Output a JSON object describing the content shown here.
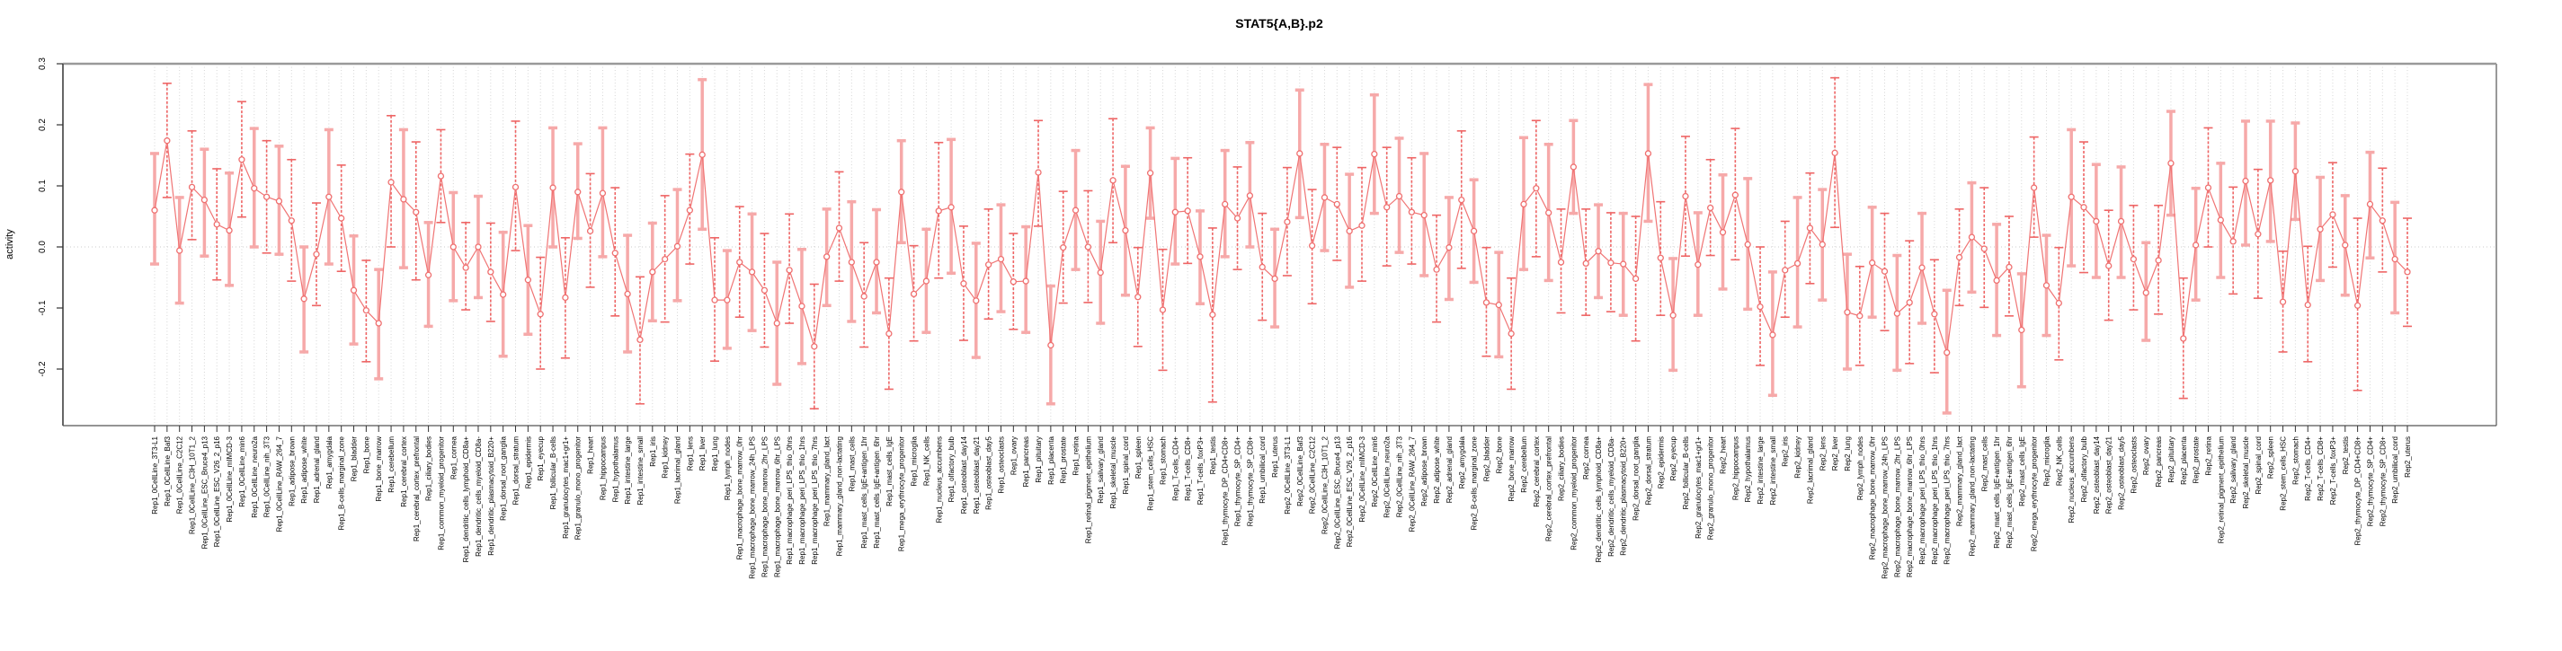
{
  "header": {
    "title": "STAT5{A,B}.p2"
  },
  "chart_data": {
    "type": "line",
    "title": "STAT5{A,B}.p2",
    "xlabel": "",
    "ylabel": "activity",
    "ylim": [
      -0.293,
      0.3
    ],
    "yticks": [
      -0.2,
      -0.1,
      0.0,
      0.1,
      0.2,
      0.3
    ],
    "grid": "vertical dotted line at every category; horizontal dotted line at y=0",
    "legend": "none",
    "marker": "open-circle",
    "series_color": "#f07474",
    "marker_color": "#ef7070",
    "grid_color": "#d6d6d6",
    "zero_line_color": "#cccccc",
    "box_color": "#999999",
    "axis_color": "#555555",
    "tick_color": "#333333",
    "text_color": "#000000",
    "errorbar_styles": [
      {
        "color": "#f6a9a9",
        "width": 3.5,
        "dash": ""
      },
      {
        "color": "#ee6565",
        "width": 1.6,
        "dash": "3,2"
      }
    ],
    "categories": [
      "Rep1_0CellLine_3T3-L1",
      "Rep1_0CellLine_Baf3",
      "Rep1_0CellLine_C2C12",
      "Rep1_0CellLine_C3H_10T1_2",
      "Rep1_0CellLine_ESC_Bruce4_p13",
      "Rep1_0CellLine_ESC_V26_2_p16",
      "Rep1_0CellLine_mIMCD-3",
      "Rep1_0CellLine_min6",
      "Rep1_0CellLine_neuro2a",
      "Rep1_0CellLine_nih_3T3",
      "Rep1_0CellLine_RAW_264_7",
      "Rep1_adipose_brown",
      "Rep1_adipose_white",
      "Rep1_adrenal_gland",
      "Rep1_amygdala",
      "Rep1_B-cells_marginal_zone",
      "Rep1_bladder",
      "Rep1_bone",
      "Rep1_bone_marrow",
      "Rep1_cerebellum",
      "Rep1_cerebral_cortex",
      "Rep1_cerebral_cortex_prefrontal",
      "Rep1_ciliary_bodies",
      "Rep1_common_myeloid_progenitor",
      "Rep1_cornea",
      "Rep1_dendritic_cells_lymphoid_CD8a+",
      "Rep1_dendritic_cells_myeloid_CD8a-",
      "Rep1_dendritic_plasmacytoid_B220+",
      "Rep1_dorsal_root_ganglia",
      "Rep1_dorsal_stratum",
      "Rep1_epidermis",
      "Rep1_eyecup",
      "Rep1_follicular_B-cells",
      "Rep1_granulocytes_mac1+gr1+",
      "Rep1_granulo_mono_progenitor",
      "Rep1_heart",
      "Rep1_hippocampus",
      "Rep1_hypothalamus",
      "Rep1_intestine_large",
      "Rep1_intestine_small",
      "Rep1_iris",
      "Rep1_kidney",
      "Rep1_lacrimal_gland",
      "Rep1_lens",
      "Rep1_liver",
      "Rep1_lung",
      "Rep1_lymph_nodes",
      "Rep1_macrophage_bone_marrow_0hr",
      "Rep1_macrophage_bone_marrow_24h_LPS",
      "Rep1_macrophage_bone_marrow_2hr_LPS",
      "Rep1_macrophage_bone_marrow_6hr_LPS",
      "Rep1_macrophage_peri_LPS_thio_0hrs",
      "Rep1_macrophage_peri_LPS_thio_1hrs",
      "Rep1_macrophage_peri_LPS_thio_7hrs",
      "Rep1_mammary_gland_lact",
      "Rep1_mammary_gland_non-lactating",
      "Rep1_mast_cells",
      "Rep1_mast_cells_IgE+antigen_1hr",
      "Rep1_mast_cells_IgE+antigen_6hr",
      "Rep1_mast_cells_IgE",
      "Rep1_mega_erythrocyte_progenitor",
      "Rep1_microglia",
      "Rep1_NK_cells",
      "Rep1_nucleus_accumbens",
      "Rep1_olfactory_bulb",
      "Rep1_osteoblast_day14",
      "Rep1_osteoblast_day21",
      "Rep1_osteoblast_day5",
      "Rep1_osteoclasts",
      "Rep1_ovary",
      "Rep1_pancreas",
      "Rep1_pituitary",
      "Rep1_placenta",
      "Rep1_prostate",
      "Rep1_retina",
      "Rep1_retinal_pigment_epithelium",
      "Rep1_salivary_gland",
      "Rep1_skeletal_muscle",
      "Rep1_spinal_cord",
      "Rep1_spleen",
      "Rep1_stem_cells_HSC",
      "Rep1_stomach",
      "Rep1_T-cells_CD4+",
      "Rep1_T-cells_CD8+",
      "Rep1_T-cells_foxP3+",
      "Rep1_testis",
      "Rep1_thymocyte_DP_CD4+CD8+",
      "Rep1_thymocyte_SP_CD4+",
      "Rep1_thymocyte_SP_CD8+",
      "Rep1_umbilical_cord",
      "Rep1_uterus",
      "Rep2_0CellLine_3T3-L1",
      "Rep2_0CellLine_Baf3",
      "Rep2_0CellLine_C2C12",
      "Rep2_0CellLine_C3H_10T1_2",
      "Rep2_0CellLine_ESC_Bruce4_p13",
      "Rep2_0CellLine_ESC_V26_2_p16",
      "Rep2_0CellLine_mIMCD-3",
      "Rep2_0CellLine_min6",
      "Rep2_0CellLine_neuro2a",
      "Rep2_0CellLine_nih_3T3",
      "Rep2_0CellLine_RAW_264_7",
      "Rep2_adipose_brown",
      "Rep2_adipose_white",
      "Rep2_adrenal_gland",
      "Rep2_amygdala",
      "Rep2_B-cells_marginal_zone",
      "Rep2_bladder",
      "Rep2_bone",
      "Rep2_bone_marrow",
      "Rep2_cerebellum",
      "Rep2_cerebral_cortex",
      "Rep2_cerebral_cortex_prefrontal",
      "Rep2_ciliary_bodies",
      "Rep2_common_myeloid_progenitor",
      "Rep2_cornea",
      "Rep2_dendritic_cells_lymphoid_CD8a+",
      "Rep2_dendritic_cells_myeloid_CD8a-",
      "Rep2_dendritic_plasmacytoid_B220+",
      "Rep2_dorsal_root_ganglia",
      "Rep2_dorsal_stratum",
      "Rep2_epidermis",
      "Rep2_eyecup",
      "Rep2_follicular_B-cells",
      "Rep2_granulocytes_mac1+gr1+",
      "Rep2_granulo_mono_progenitor",
      "Rep2_heart",
      "Rep2_hippocampus",
      "Rep2_hypothalamus",
      "Rep2_intestine_large",
      "Rep2_intestine_small",
      "Rep2_iris",
      "Rep2_kidney",
      "Rep2_lacrimal_gland",
      "Rep2_lens",
      "Rep2_liver",
      "Rep2_lung",
      "Rep2_lymph_nodes",
      "Rep2_macrophage_bone_marrow_0hr",
      "Rep2_macrophage_bone_marrow_24h_LPS",
      "Rep2_macrophage_bone_marrow_2hr_LPS",
      "Rep2_macrophage_bone_marrow_6hr_LPS",
      "Rep2_macrophage_peri_LPS_thio_0hrs",
      "Rep2_macrophage_peri_LPS_thio_1hrs",
      "Rep2_macrophage_peri_LPS_thio_7hrs",
      "Rep2_mammary_gland_lact",
      "Rep2_mammary_gland_non-lactating",
      "Rep2_mast_cells",
      "Rep2_mast_cells_IgE+antigen_1hr",
      "Rep2_mast_cells_IgE+antigen_6hr",
      "Rep2_mast_cells_IgE",
      "Rep2_mega_erythrocyte_progenitor",
      "Rep2_microglia",
      "Rep2_NK_cells",
      "Rep2_nucleus_accumbens",
      "Rep2_olfactory_bulb",
      "Rep2_osteoblast_day14",
      "Rep2_osteoblast_day21",
      "Rep2_osteoblast_day5",
      "Rep2_osteoclasts",
      "Rep2_ovary",
      "Rep2_pancreas",
      "Rep2_pituitary",
      "Rep2_placenta",
      "Rep2_prostate",
      "Rep2_retina",
      "Rep2_retinal_pigment_epithelium",
      "Rep2_salivary_gland",
      "Rep2_skeletal_muscle",
      "Rep2_spinal_cord",
      "Rep2_spleen",
      "Rep2_stem_cells_HSC",
      "Rep2_stomach",
      "Rep2_T-cells_CD4+",
      "Rep2_T-cells_CD8+",
      "Rep2_T-cells_foxP3+",
      "Rep2_testis",
      "Rep2_thymocyte_DP_CD4+CD8+",
      "Rep2_thymocyte_SP_CD4+",
      "Rep2_thymocyte_SP_CD8+",
      "Rep2_umbilical_cord",
      "Rep2_uterus"
    ],
    "values": [
      0.06,
      0.174,
      -0.006,
      0.098,
      0.077,
      0.037,
      0.027,
      0.143,
      0.096,
      0.082,
      0.075,
      0.043,
      -0.085,
      -0.012,
      0.082,
      0.047,
      -0.071,
      -0.104,
      -0.125,
      0.106,
      0.078,
      0.057,
      -0.046,
      0.116,
      0.0,
      -0.034,
      0.0,
      -0.041,
      -0.078,
      0.098,
      -0.054,
      -0.11,
      0.097,
      -0.083,
      0.09,
      0.026,
      0.088,
      -0.01,
      -0.077,
      -0.152,
      -0.041,
      -0.02,
      0.001,
      0.06,
      0.151,
      -0.087,
      -0.087,
      -0.025,
      -0.041,
      -0.071,
      -0.125,
      -0.038,
      -0.097,
      -0.163,
      -0.016,
      0.031,
      -0.025,
      -0.081,
      -0.025,
      -0.142,
      0.09,
      -0.077,
      -0.056,
      0.059,
      0.065,
      -0.06,
      -0.088,
      -0.029,
      -0.02,
      -0.057,
      -0.056,
      0.122,
      -0.161,
      -0.001,
      0.06,
      0.0,
      -0.042,
      0.109,
      0.027,
      -0.082,
      0.121,
      -0.103,
      0.057,
      0.059,
      -0.016,
      -0.111,
      0.07,
      0.047,
      0.084,
      -0.033,
      -0.052,
      0.041,
      0.153,
      0.002,
      0.081,
      0.07,
      0.026,
      0.035,
      0.152,
      0.065,
      0.083,
      0.057,
      0.052,
      -0.037,
      -0.001,
      0.077,
      0.026,
      -0.091,
      -0.095,
      -0.142,
      0.07,
      0.096,
      0.056,
      -0.025,
      0.131,
      -0.027,
      -0.007,
      -0.026,
      -0.028,
      -0.052,
      0.153,
      -0.018,
      -0.112,
      0.083,
      -0.029,
      0.064,
      0.024,
      0.085,
      0.004,
      -0.098,
      -0.144,
      -0.038,
      -0.027,
      0.031,
      0.004,
      0.154,
      -0.107,
      -0.113,
      -0.026,
      -0.04,
      -0.109,
      -0.091,
      -0.034,
      -0.11,
      -0.173,
      -0.017,
      0.016,
      -0.003,
      -0.055,
      -0.033,
      -0.136,
      0.097,
      -0.063,
      -0.092,
      0.082,
      0.065,
      0.042,
      -0.031,
      0.042,
      -0.02,
      -0.075,
      -0.022,
      0.137,
      -0.15,
      0.003,
      0.097,
      0.044,
      0.009,
      0.108,
      0.021,
      0.109,
      -0.09,
      0.124,
      -0.095,
      0.029,
      0.053,
      0.003,
      -0.096,
      0.07,
      0.043,
      -0.02,
      -0.041
    ],
    "err_lo": [
      -0.028,
      0.081,
      -0.092,
      0.012,
      -0.015,
      -0.054,
      -0.063,
      0.049,
      0.0,
      -0.01,
      -0.012,
      -0.056,
      -0.172,
      -0.096,
      -0.028,
      -0.04,
      -0.159,
      -0.188,
      -0.216,
      0.0,
      -0.034,
      -0.054,
      -0.13,
      0.04,
      -0.088,
      -0.103,
      -0.083,
      -0.122,
      -0.179,
      -0.006,
      -0.143,
      -0.2,
      0.0,
      -0.182,
      0.014,
      -0.066,
      -0.016,
      -0.113,
      -0.172,
      -0.257,
      -0.121,
      -0.123,
      -0.088,
      -0.028,
      0.029,
      -0.187,
      -0.166,
      -0.115,
      -0.137,
      -0.164,
      -0.225,
      -0.125,
      -0.191,
      -0.265,
      -0.096,
      -0.056,
      -0.122,
      -0.164,
      -0.108,
      -0.233,
      0.007,
      -0.154,
      -0.14,
      -0.051,
      -0.043,
      -0.153,
      -0.181,
      -0.118,
      -0.106,
      -0.135,
      -0.14,
      0.034,
      -0.257,
      -0.092,
      -0.037,
      -0.091,
      -0.125,
      0.007,
      -0.079,
      -0.163,
      0.047,
      -0.202,
      -0.028,
      -0.027,
      -0.093,
      -0.254,
      -0.016,
      -0.037,
      0.0,
      -0.12,
      -0.131,
      -0.047,
      0.048,
      -0.093,
      -0.006,
      -0.022,
      -0.066,
      -0.056,
      0.055,
      -0.031,
      -0.009,
      -0.028,
      -0.047,
      -0.123,
      -0.086,
      -0.035,
      -0.058,
      -0.179,
      -0.18,
      -0.233,
      -0.037,
      -0.016,
      -0.055,
      -0.108,
      0.055,
      -0.112,
      -0.083,
      -0.106,
      -0.112,
      -0.154,
      0.042,
      -0.112,
      -0.202,
      -0.015,
      -0.112,
      -0.014,
      -0.069,
      -0.021,
      -0.102,
      -0.194,
      -0.243,
      -0.115,
      -0.131,
      -0.06,
      -0.087,
      0.032,
      -0.2,
      -0.194,
      -0.115,
      -0.137,
      -0.202,
      -0.191,
      -0.125,
      -0.206,
      -0.272,
      -0.096,
      -0.074,
      -0.099,
      -0.145,
      -0.113,
      -0.229,
      0.016,
      -0.145,
      -0.185,
      -0.031,
      -0.042,
      -0.05,
      -0.12,
      -0.05,
      -0.103,
      -0.153,
      -0.11,
      0.052,
      -0.248,
      -0.087,
      0.0,
      -0.05,
      -0.077,
      0.003,
      -0.084,
      0.009,
      -0.172,
      0.045,
      -0.188,
      -0.055,
      -0.033,
      -0.079,
      -0.235,
      -0.018,
      -0.041,
      -0.108,
      -0.13
    ],
    "err_hi": [
      0.153,
      0.268,
      0.081,
      0.19,
      0.16,
      0.128,
      0.121,
      0.238,
      0.194,
      0.174,
      0.165,
      0.143,
      0.0,
      0.072,
      0.192,
      0.134,
      0.018,
      -0.022,
      -0.037,
      0.215,
      0.192,
      0.172,
      0.04,
      0.192,
      0.089,
      0.04,
      0.083,
      0.039,
      0.024,
      0.206,
      0.035,
      -0.017,
      0.195,
      0.015,
      0.169,
      0.12,
      0.195,
      0.097,
      0.019,
      -0.049,
      0.039,
      0.084,
      0.094,
      0.152,
      0.274,
      0.015,
      -0.006,
      0.066,
      0.054,
      0.022,
      -0.025,
      0.054,
      -0.004,
      -0.061,
      0.062,
      0.123,
      0.074,
      0.007,
      0.061,
      -0.051,
      0.174,
      0.002,
      0.029,
      0.171,
      0.176,
      0.034,
      0.006,
      0.062,
      0.069,
      0.022,
      0.033,
      0.207,
      -0.064,
      0.091,
      0.158,
      0.092,
      0.042,
      0.21,
      0.132,
      -0.001,
      0.195,
      -0.004,
      0.145,
      0.146,
      0.059,
      0.031,
      0.158,
      0.131,
      0.171,
      0.055,
      0.029,
      0.13,
      0.257,
      0.094,
      0.168,
      0.163,
      0.119,
      0.13,
      0.249,
      0.163,
      0.178,
      0.146,
      0.153,
      0.052,
      0.081,
      0.19,
      0.11,
      -0.001,
      -0.009,
      -0.051,
      0.179,
      0.207,
      0.168,
      0.062,
      0.207,
      0.062,
      0.069,
      0.056,
      0.055,
      0.05,
      0.266,
      0.074,
      -0.019,
      0.181,
      0.056,
      0.143,
      0.118,
      0.194,
      0.112,
      0.0,
      -0.041,
      0.042,
      0.081,
      0.121,
      0.094,
      0.277,
      -0.012,
      -0.032,
      0.065,
      0.055,
      -0.014,
      0.01,
      0.055,
      -0.021,
      -0.071,
      0.062,
      0.105,
      0.097,
      0.037,
      0.05,
      -0.044,
      0.18,
      0.019,
      -0.001,
      0.192,
      0.172,
      0.135,
      0.06,
      0.131,
      0.068,
      0.007,
      0.068,
      0.222,
      -0.051,
      0.096,
      0.195,
      0.137,
      0.098,
      0.206,
      0.127,
      0.206,
      -0.007,
      0.203,
      0.001,
      0.114,
      0.138,
      0.084,
      0.047,
      0.155,
      0.129,
      0.073,
      0.047
    ]
  }
}
